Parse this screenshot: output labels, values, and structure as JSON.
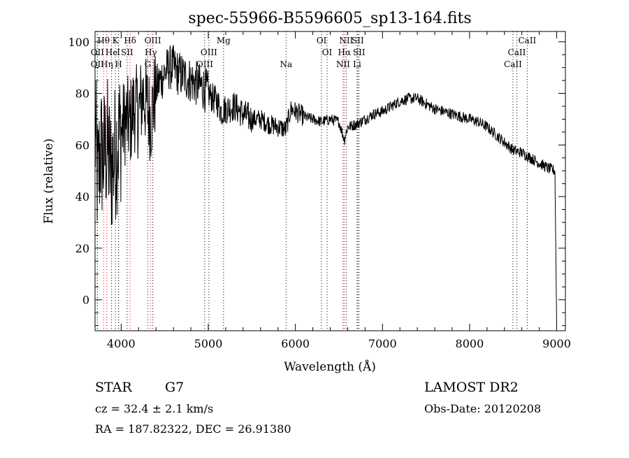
{
  "chart_data": {
    "type": "line",
    "title": "spec-55966-B5596605_sp13-164.fits",
    "xlabel": "Wavelength (Å)",
    "ylabel": "Flux (relative)",
    "xlim": [
      3700,
      9100
    ],
    "ylim": [
      -12,
      104
    ],
    "x_ticks": [
      4000,
      5000,
      6000,
      7000,
      8000,
      9000
    ],
    "y_ticks": [
      0,
      20,
      40,
      60,
      80,
      100
    ],
    "grid": false,
    "series": [
      {
        "name": "",
        "color": "#000000",
        "anchors": [
          [
            3700,
            65
          ],
          [
            3730,
            45
          ],
          [
            3760,
            58
          ],
          [
            3800,
            55
          ],
          [
            3840,
            60
          ],
          [
            3880,
            50
          ],
          [
            3920,
            55
          ],
          [
            3960,
            62
          ],
          [
            4000,
            65
          ],
          [
            4050,
            70
          ],
          [
            4100,
            68
          ],
          [
            4150,
            75
          ],
          [
            4200,
            72
          ],
          [
            4250,
            80
          ],
          [
            4300,
            75
          ],
          [
            4340,
            70
          ],
          [
            4400,
            82
          ],
          [
            4450,
            85
          ],
          [
            4500,
            88
          ],
          [
            4550,
            90
          ],
          [
            4600,
            90
          ],
          [
            4650,
            88
          ],
          [
            4700,
            87
          ],
          [
            4750,
            86
          ],
          [
            4800,
            85
          ],
          [
            4850,
            84
          ],
          [
            4900,
            83
          ],
          [
            4950,
            82
          ],
          [
            5000,
            80
          ],
          [
            5050,
            78
          ],
          [
            5100,
            77
          ],
          [
            5150,
            73
          ],
          [
            5200,
            74
          ],
          [
            5300,
            75
          ],
          [
            5400,
            72
          ],
          [
            5500,
            70
          ],
          [
            5600,
            70
          ],
          [
            5700,
            68
          ],
          [
            5800,
            67
          ],
          [
            5890,
            66
          ],
          [
            5950,
            74
          ],
          [
            6000,
            73
          ],
          [
            6100,
            71
          ],
          [
            6200,
            70
          ],
          [
            6300,
            69
          ],
          [
            6400,
            70
          ],
          [
            6500,
            69
          ],
          [
            6563,
            62
          ],
          [
            6600,
            67
          ],
          [
            6700,
            68
          ],
          [
            6800,
            70
          ],
          [
            6900,
            72
          ],
          [
            7000,
            73
          ],
          [
            7100,
            75
          ],
          [
            7200,
            77
          ],
          [
            7300,
            78
          ],
          [
            7400,
            78
          ],
          [
            7500,
            76
          ],
          [
            7600,
            74
          ],
          [
            7700,
            73
          ],
          [
            7800,
            72
          ],
          [
            7900,
            71
          ],
          [
            8000,
            70
          ],
          [
            8100,
            69
          ],
          [
            8200,
            67
          ],
          [
            8300,
            64
          ],
          [
            8400,
            61
          ],
          [
            8500,
            58
          ],
          [
            8600,
            57
          ],
          [
            8700,
            55
          ],
          [
            8800,
            53
          ],
          [
            8900,
            51
          ],
          [
            8980,
            50
          ],
          [
            9000,
            -10
          ]
        ]
      }
    ],
    "spectral_lines": [
      {
        "name": "Hθ",
        "x": 3798,
        "row": 0,
        "color": "#ff0000"
      },
      {
        "name": "K",
        "x": 3934,
        "row": 0,
        "color": "#000000"
      },
      {
        "name": "Hδ",
        "x": 4102,
        "row": 0,
        "color": "#ff0000"
      },
      {
        "name": "OIII",
        "x": 4363,
        "row": 0,
        "color": "#000000"
      },
      {
        "name": "Mg",
        "x": 5175,
        "row": 0,
        "color": "#000000"
      },
      {
        "name": "OI",
        "x": 6300,
        "row": 0,
        "color": "#000000"
      },
      {
        "name": "NII",
        "x": 6583,
        "row": 0,
        "color": "#000000"
      },
      {
        "name": "SII",
        "x": 6716,
        "row": 0,
        "color": "#000000"
      },
      {
        "name": "CaII",
        "x": 8662,
        "row": 0,
        "color": "#000000"
      },
      {
        "name": "OII",
        "x": 3727,
        "row": 1,
        "color": "#000000"
      },
      {
        "name": "He",
        "x": 3889,
        "row": 1,
        "color": "#000000"
      },
      {
        "name": "I",
        "x": 3970,
        "row": 1,
        "color": "#000000"
      },
      {
        "name": "SII",
        "x": 4068,
        "row": 1,
        "color": "#000000"
      },
      {
        "name": "Hγ",
        "x": 4340,
        "row": 1,
        "color": "#ff0000"
      },
      {
        "name": "OIII",
        "x": 5007,
        "row": 1,
        "color": "#000000"
      },
      {
        "name": "OI",
        "x": 6364,
        "row": 1,
        "color": "#000000"
      },
      {
        "name": "Hα",
        "x": 6563,
        "row": 1,
        "color": "#ff0000"
      },
      {
        "name": "SII",
        "x": 6731,
        "row": 1,
        "color": "#000000"
      },
      {
        "name": "CaII",
        "x": 8542,
        "row": 1,
        "color": "#000000"
      },
      {
        "name": "OII",
        "x": 3727,
        "row": 2,
        "color": "#000000"
      },
      {
        "name": "Hη",
        "x": 3835,
        "row": 2,
        "color": "#ff0000"
      },
      {
        "name": "H",
        "x": 3970,
        "row": 2,
        "color": "#000000"
      },
      {
        "name": "G",
        "x": 4305,
        "row": 2,
        "color": "#000000"
      },
      {
        "name": "OIII",
        "x": 4959,
        "row": 2,
        "color": "#000000"
      },
      {
        "name": "Na",
        "x": 5893,
        "row": 2,
        "color": "#000000"
      },
      {
        "name": "NII",
        "x": 6548,
        "row": 2,
        "color": "#000000"
      },
      {
        "name": "Li",
        "x": 6708,
        "row": 2,
        "color": "#000000"
      },
      {
        "name": "CaII",
        "x": 8498,
        "row": 2,
        "color": "#000000"
      }
    ]
  },
  "info": {
    "object_class": "STAR",
    "subclass": "G7",
    "survey": "LAMOST DR2",
    "cz": "cz = 32.4 ± 2.1 km/s",
    "obs_date": "Obs-Date: 20120208",
    "coords": "RA = 187.82322, DEC =  26.91380"
  }
}
